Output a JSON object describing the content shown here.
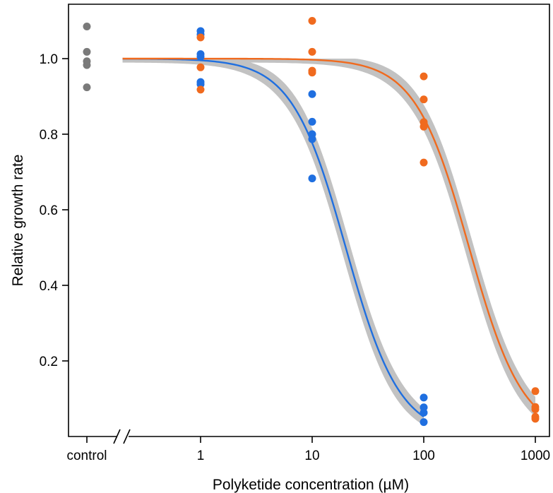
{
  "chart_data": {
    "type": "scatter",
    "xlabel": "Polyketide concentration (µM)",
    "ylabel": "Relative growth rate",
    "x_scale": "log",
    "x_ticks": [
      {
        "label": "control",
        "value": "control"
      },
      {
        "label": "1",
        "value": 1
      },
      {
        "label": "10",
        "value": 10
      },
      {
        "label": "100",
        "value": 100
      },
      {
        "label": "1000",
        "value": 1000
      }
    ],
    "y_ticks": [
      "0.2",
      "0.4",
      "0.6",
      "0.8",
      "1.0"
    ],
    "ylim": [
      0.0,
      1.12
    ],
    "axis_break": "between control and 1",
    "grid": false,
    "legend": "none",
    "series": [
      {
        "color": "#7a7a7a",
        "points": [
          {
            "x": "control",
            "y": 1.085
          },
          {
            "x": "control",
            "y": 1.018
          },
          {
            "x": "control",
            "y": 0.993
          },
          {
            "x": "control",
            "y": 0.983
          },
          {
            "x": "control",
            "y": 0.924
          }
        ]
      },
      {
        "color": "#1f6fe0",
        "points": [
          {
            "x": 1,
            "y": 1.073
          },
          {
            "x": 1,
            "y": 1.064
          },
          {
            "x": 1,
            "y": 1.012
          },
          {
            "x": 1,
            "y": 1.005
          },
          {
            "x": 1,
            "y": 0.938
          },
          {
            "x": 1,
            "y": 0.932
          },
          {
            "x": 10,
            "y": 0.906
          },
          {
            "x": 10,
            "y": 0.833
          },
          {
            "x": 10,
            "y": 0.8
          },
          {
            "x": 10,
            "y": 0.787
          },
          {
            "x": 10,
            "y": 0.683
          },
          {
            "x": 100,
            "y": 0.103
          },
          {
            "x": 100,
            "y": 0.077
          },
          {
            "x": 100,
            "y": 0.063
          },
          {
            "x": 100,
            "y": 0.038
          }
        ],
        "fit": {
          "model": "logistic",
          "ic50": 20,
          "hill": 1.8,
          "top": 1.0,
          "x_range": [
            0.2,
            100
          ],
          "band_halfwidth": 0.045
        }
      },
      {
        "color": "#f06a1e",
        "points": [
          {
            "x": 1,
            "y": 1.056
          },
          {
            "x": 1,
            "y": 0.977
          },
          {
            "x": 1,
            "y": 0.918
          },
          {
            "x": 10,
            "y": 1.1
          },
          {
            "x": 10,
            "y": 1.018
          },
          {
            "x": 10,
            "y": 0.968
          },
          {
            "x": 10,
            "y": 0.963
          },
          {
            "x": 100,
            "y": 0.953
          },
          {
            "x": 100,
            "y": 0.892
          },
          {
            "x": 100,
            "y": 0.832
          },
          {
            "x": 100,
            "y": 0.82
          },
          {
            "x": 100,
            "y": 0.725
          },
          {
            "x": 1000,
            "y": 0.12
          },
          {
            "x": 1000,
            "y": 0.078
          },
          {
            "x": 1000,
            "y": 0.072
          },
          {
            "x": 1000,
            "y": 0.052
          },
          {
            "x": 1000,
            "y": 0.047
          }
        ],
        "fit": {
          "model": "logistic",
          "ic50": 255,
          "hill": 1.8,
          "top": 1.0,
          "x_range": [
            0.2,
            1000
          ],
          "band_halfwidth": 0.045
        }
      }
    ]
  }
}
